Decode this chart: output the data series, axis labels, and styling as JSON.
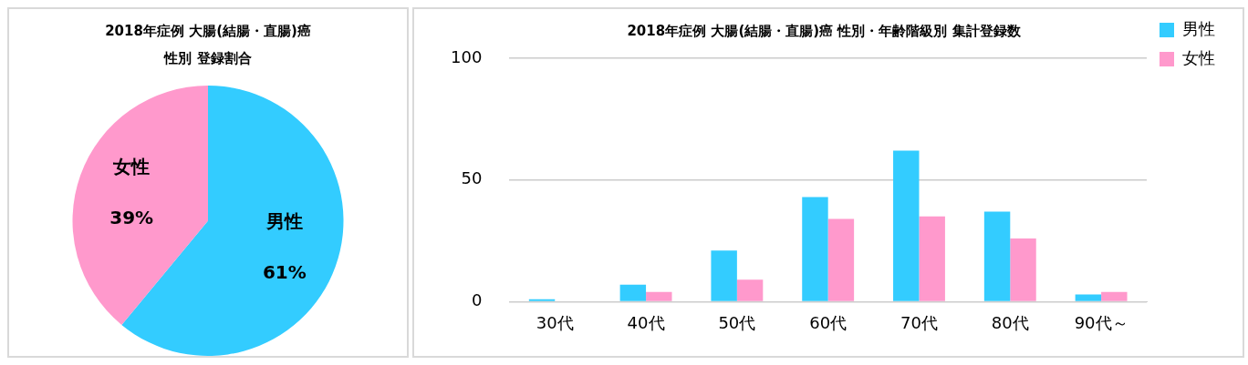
{
  "chart_data": [
    {
      "type": "pie",
      "title": "2018年症例 大腸(結腸・直腸)癌",
      "subtitle": "性別 登録割合",
      "categories": [
        "男性",
        "女性"
      ],
      "values": [
        61,
        39
      ],
      "value_labels": [
        "61%",
        "39%"
      ],
      "colors": [
        "#33ccff",
        "#ff99cc"
      ],
      "legend": false
    },
    {
      "type": "bar",
      "title": "2018年症例 大腸(結腸・直腸)癌 性別・年齢階級別 集計登録数",
      "categories": [
        "30代",
        "40代",
        "50代",
        "60代",
        "70代",
        "80代",
        "90代～"
      ],
      "series": [
        {
          "name": "男性",
          "color": "#33ccff",
          "values": [
            1,
            7,
            21,
            43,
            62,
            37,
            3
          ]
        },
        {
          "name": "女性",
          "color": "#ff99cc",
          "values": [
            0,
            4,
            9,
            34,
            35,
            26,
            4
          ]
        }
      ],
      "ylim": [
        0,
        100
      ],
      "yticks": [
        0,
        50,
        100
      ],
      "grid": "y",
      "legend": "top right"
    }
  ]
}
